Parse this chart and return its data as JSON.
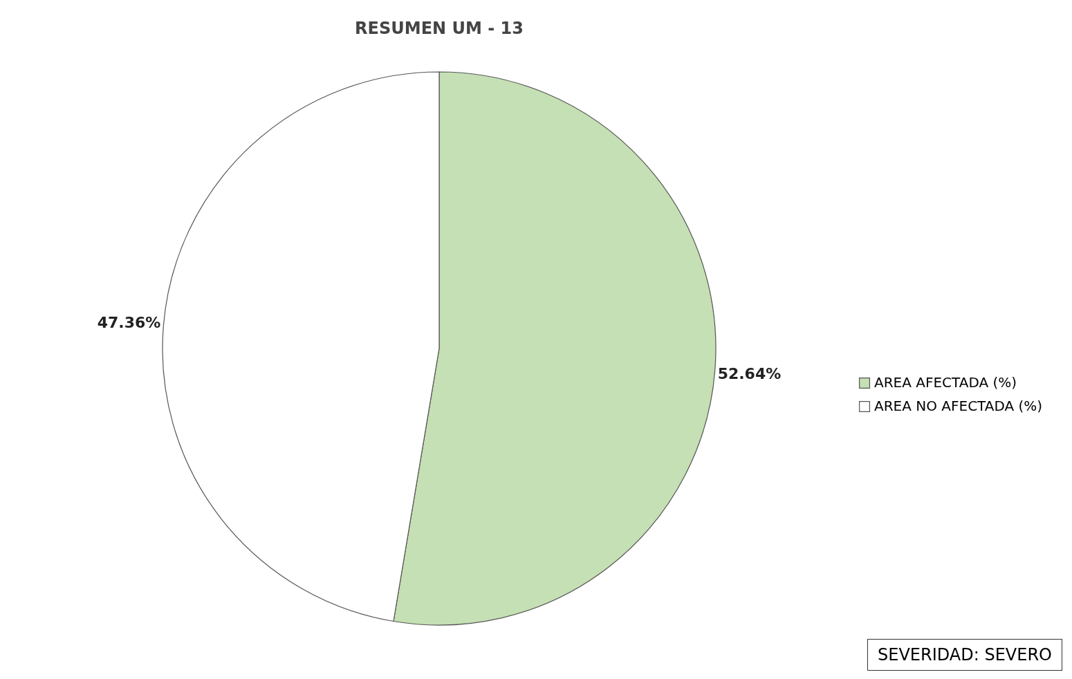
{
  "chart_data": {
    "type": "pie",
    "title": "RESUMEN UM - 13",
    "categories": [
      "AREA AFECTADA (%)",
      "AREA NO AFECTADA (%)"
    ],
    "values": [
      52.64,
      47.36
    ],
    "colors": [
      "#c5e0b4",
      "#ffffff"
    ],
    "value_labels": [
      "52.64%",
      "47.36%"
    ],
    "legend": "right",
    "annotations": [
      "SEVERIDAD: SEVERO"
    ]
  }
}
